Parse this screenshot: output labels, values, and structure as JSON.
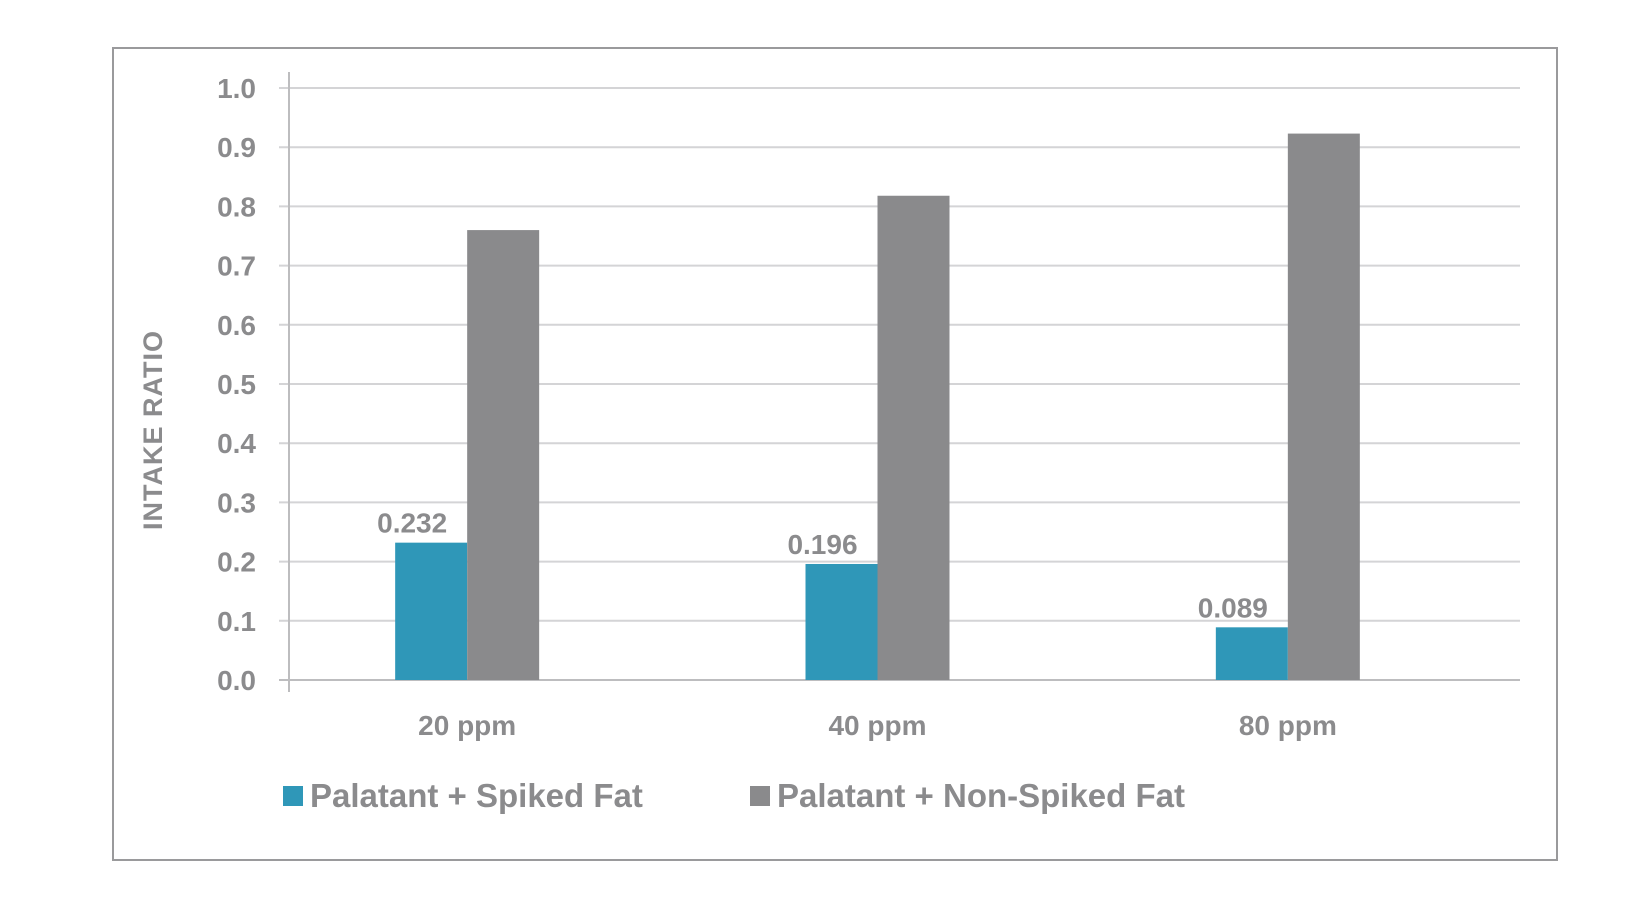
{
  "chart_data": {
    "type": "bar",
    "categories": [
      "20 ppm",
      "40 ppm",
      "80 ppm"
    ],
    "series": [
      {
        "name": "Palatant + Spiked Fat",
        "values": [
          0.232,
          0.196,
          0.089
        ],
        "color": "#2f97b8"
      },
      {
        "name": "Palatant + Non-Spiked Fat",
        "values": [
          0.76,
          0.818,
          0.923
        ],
        "color": "#8a8a8c"
      }
    ],
    "data_labels": [
      "0.232",
      "0.196",
      "0.089"
    ],
    "ylabel": "INTAKE RATIO",
    "xlabel": "",
    "title": "",
    "ylim": [
      0,
      1.0
    ],
    "yticks": [
      "0.0",
      "0.1",
      "0.2",
      "0.3",
      "0.4",
      "0.5",
      "0.6",
      "0.7",
      "0.8",
      "0.9",
      "1.0"
    ],
    "grid": true,
    "legend_position": "bottom"
  }
}
